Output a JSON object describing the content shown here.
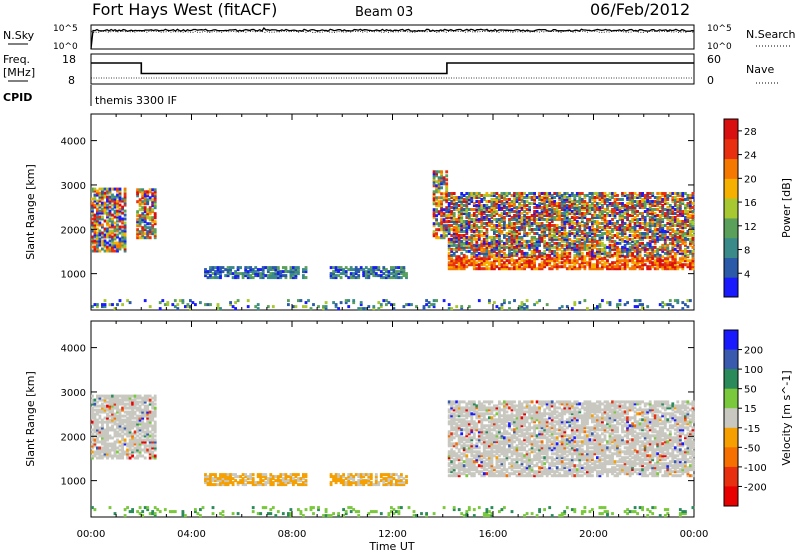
{
  "header": {
    "station": "Fort Hays West (fitACF)",
    "beam": "Beam 03",
    "date": "06/Feb/2012"
  },
  "status_panel": {
    "nsky_label": "N.Sky",
    "nsearch_label": "N.Search",
    "freq_label_1": "Freq.",
    "freq_label_2": "[MHz]",
    "nave_label": "Nave",
    "cpid_label": "CPID",
    "cpid_value": "themis 3300 IF",
    "noise_ticks_left": [
      "10^5",
      "10^0"
    ],
    "noise_ticks_right": [
      "10^5",
      "10^0"
    ],
    "freq_ticks": [
      "18",
      "8"
    ],
    "nave_ticks": [
      "60",
      "0"
    ]
  },
  "chart_data": [
    {
      "type": "line",
      "name": "noise",
      "series": [
        {
          "name": "N.Sky",
          "style": "solid",
          "level_frac": 0.78
        },
        {
          "name": "N.Search",
          "style": "dotted",
          "level_frac": 0.72
        }
      ],
      "yscale": "log",
      "ylim_ticks": [
        "10^0",
        "10^5"
      ]
    },
    {
      "type": "line",
      "name": "frequency_nave",
      "x": [
        "00:00",
        "02:00",
        "02:00",
        "14:10",
        "14:10",
        "24:00"
      ],
      "freq_mhz": [
        15,
        15,
        11.5,
        11.5,
        15,
        15
      ],
      "nave": [
        12,
        12,
        12,
        12,
        12,
        12
      ],
      "ylim_freq": [
        8,
        18
      ],
      "ylim_nave": [
        0,
        60
      ]
    },
    {
      "type": "heatmap",
      "name": "power",
      "xlabel": "Time UT",
      "ylabel": "Slant Range [km]",
      "xticks": [
        "00:00",
        "04:00",
        "08:00",
        "12:00",
        "16:00",
        "20:00",
        "00:00"
      ],
      "yticks": [
        1000,
        2000,
        3000,
        4000
      ],
      "ylim": [
        180,
        4600
      ],
      "xlim_hours": [
        0,
        24
      ],
      "colorbar": {
        "label": "Power [dB]",
        "ticks": [
          4,
          8,
          12,
          16,
          20,
          24,
          28
        ],
        "range": [
          0,
          30
        ],
        "colors": [
          "#1a1aff",
          "#2a5aa8",
          "#3a8a8a",
          "#5aa05a",
          "#a8c832",
          "#f5b000",
          "#f57800",
          "#e83010",
          "#d81010"
        ]
      },
      "regions": [
        {
          "t": [
            0.0,
            1.4
          ],
          "r": [
            1500,
            2900
          ],
          "level": "mixed"
        },
        {
          "t": [
            1.8,
            2.6
          ],
          "r": [
            1800,
            2900
          ],
          "level": "mixed"
        },
        {
          "t": [
            4.5,
            8.5
          ],
          "r": [
            900,
            1150
          ],
          "level": "low"
        },
        {
          "t": [
            9.5,
            12.5
          ],
          "r": [
            900,
            1150
          ],
          "level": "low"
        },
        {
          "t": [
            13.6,
            14.1
          ],
          "r": [
            1800,
            3300
          ],
          "level": "high"
        },
        {
          "t": [
            14.2,
            24.0
          ],
          "r": [
            1100,
            1400
          ],
          "level": "high"
        },
        {
          "t": [
            14.2,
            24.0
          ],
          "r": [
            1400,
            2800
          ],
          "level": "mixed"
        },
        {
          "t": [
            0.0,
            24.0
          ],
          "r": [
            200,
            400
          ],
          "level": "sparse"
        }
      ]
    },
    {
      "type": "heatmap",
      "name": "velocity",
      "xlabel": "Time UT",
      "ylabel": "Slant Range [km]",
      "xticks": [
        "00:00",
        "04:00",
        "08:00",
        "12:00",
        "16:00",
        "20:00",
        "00:00"
      ],
      "yticks": [
        1000,
        2000,
        3000,
        4000
      ],
      "ylim": [
        180,
        4600
      ],
      "xlim_hours": [
        0,
        24
      ],
      "colorbar": {
        "label": "Velocity [m s^-1]",
        "ticks": [
          "200",
          "100",
          "50",
          "15",
          "-15",
          "-50",
          "-100",
          "-200"
        ],
        "colors": [
          "#1a1aff",
          "#3a5ab0",
          "#2a8a5a",
          "#7ac83c",
          "#c8c8c0",
          "#f5a000",
          "#f57000",
          "#e83010",
          "#e80000"
        ]
      },
      "regions": [
        {
          "t": [
            0.0,
            2.6
          ],
          "r": [
            1500,
            2900
          ],
          "level": "ground"
        },
        {
          "t": [
            4.5,
            8.5
          ],
          "r": [
            900,
            1150
          ],
          "level": "negative"
        },
        {
          "t": [
            9.5,
            12.5
          ],
          "r": [
            900,
            1150
          ],
          "level": "negative"
        },
        {
          "t": [
            14.2,
            24.0
          ],
          "r": [
            1100,
            2800
          ],
          "level": "ground"
        },
        {
          "t": [
            0.0,
            24.0
          ],
          "r": [
            200,
            400
          ],
          "level": "positive"
        }
      ]
    }
  ],
  "colors": {
    "ground_gray": "#c8c8c0"
  }
}
